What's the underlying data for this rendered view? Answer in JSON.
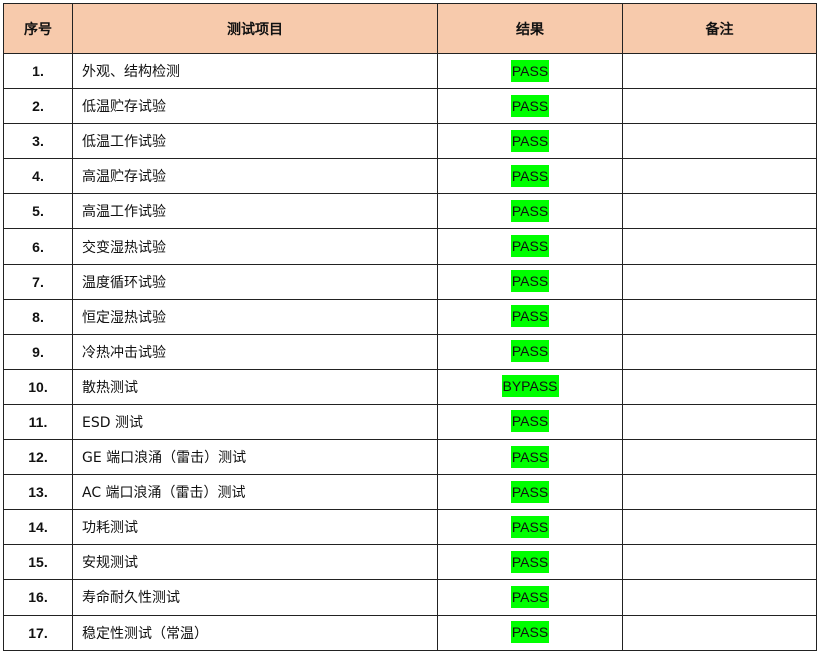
{
  "headers": [
    "序号",
    "测试项目",
    "结果",
    "备注"
  ],
  "result_highlight_color": "#00ff00",
  "header_bg_color": "#f7caac",
  "rows": [
    {
      "no": "1.",
      "item": "外观、结构检测",
      "result": "PASS",
      "note": ""
    },
    {
      "no": "2.",
      "item": "低温贮存试验",
      "result": "PASS",
      "note": ""
    },
    {
      "no": "3.",
      "item": "低温工作试验",
      "result": "PASS",
      "note": ""
    },
    {
      "no": "4.",
      "item": "高温贮存试验",
      "result": "PASS",
      "note": ""
    },
    {
      "no": "5.",
      "item": "高温工作试验",
      "result": "PASS",
      "note": ""
    },
    {
      "no": "6.",
      "item": "交变湿热试验",
      "result": "PASS",
      "note": ""
    },
    {
      "no": "7.",
      "item": "温度循环试验",
      "result": "PASS",
      "note": ""
    },
    {
      "no": "8.",
      "item": "恒定湿热试验",
      "result": "PASS",
      "note": ""
    },
    {
      "no": "9.",
      "item": "冷热冲击试验",
      "result": "PASS",
      "note": ""
    },
    {
      "no": "10.",
      "item": "散热测试",
      "result": "BYPASS",
      "note": ""
    },
    {
      "no": "11.",
      "item": "ESD 测试",
      "result": "PASS",
      "note": ""
    },
    {
      "no": "12.",
      "item": "GE 端口浪涌（雷击）测试",
      "result": "PASS",
      "note": ""
    },
    {
      "no": "13.",
      "item": "AC 端口浪涌（雷击）测试",
      "result": "PASS",
      "note": ""
    },
    {
      "no": "14.",
      "item": "功耗测试",
      "result": "PASS",
      "note": ""
    },
    {
      "no": "15.",
      "item": "安规测试",
      "result": "PASS",
      "note": ""
    },
    {
      "no": "16.",
      "item": "寿命耐久性测试",
      "result": "PASS",
      "note": ""
    },
    {
      "no": "17.",
      "item": "稳定性测试（常温）",
      "result": "PASS",
      "note": ""
    }
  ]
}
